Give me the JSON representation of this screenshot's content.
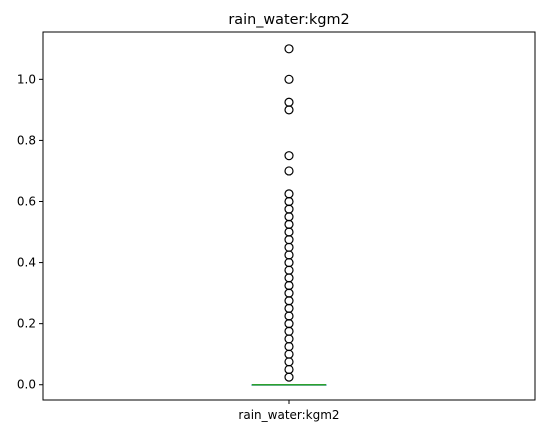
{
  "chart_data": {
    "type": "box",
    "title": "rain_water:kgm2",
    "categories": [
      "rain_water:kgm2"
    ],
    "xlabel": "",
    "ylabel": "",
    "ylim": [
      -0.05,
      1.155
    ],
    "yticks": [
      0.0,
      0.2,
      0.4,
      0.6,
      0.8,
      1.0
    ],
    "ytick_labels": [
      "0.0",
      "0.2",
      "0.4",
      "0.6",
      "0.8",
      "1.0"
    ],
    "grid": false,
    "box": {
      "min": 0.0,
      "q1": 0.0,
      "median": 0.0,
      "q3": 0.0,
      "max": 0.0
    },
    "outliers": [
      1.1,
      1.0,
      0.925,
      0.9,
      0.75,
      0.7,
      0.625,
      0.6,
      0.575,
      0.55,
      0.525,
      0.5,
      0.475,
      0.45,
      0.425,
      0.4,
      0.375,
      0.35,
      0.325,
      0.3,
      0.275,
      0.25,
      0.225,
      0.2,
      0.175,
      0.15,
      0.125,
      0.1,
      0.075,
      0.05,
      0.025
    ],
    "colors": {
      "median": "#2ca02c",
      "box": "#1f77b4",
      "outlier": "#000000"
    }
  }
}
